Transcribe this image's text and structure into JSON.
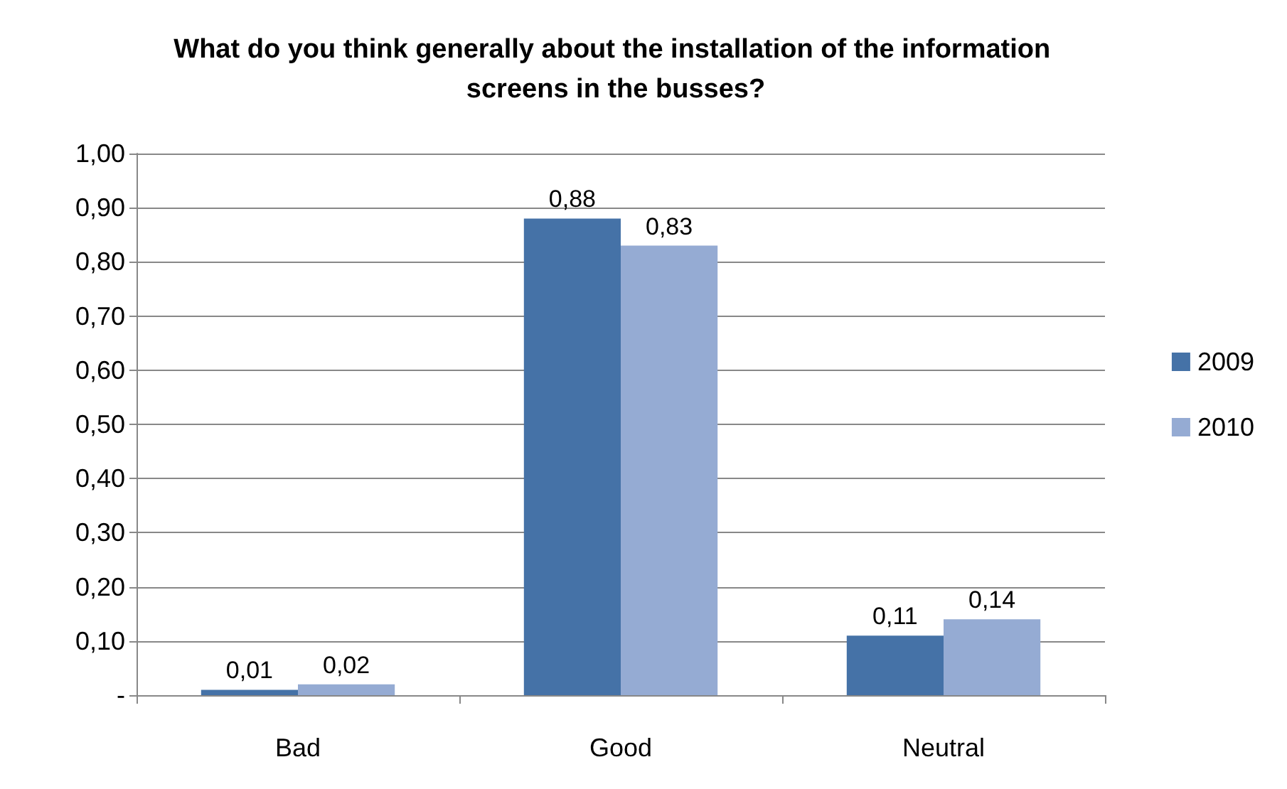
{
  "chart_data": {
    "type": "bar",
    "title": "What do you think generally about the installation of the information screens in the busses?",
    "categories": [
      "Bad",
      "Good",
      "Neutral"
    ],
    "series": [
      {
        "name": "2009",
        "color": "#4572a7",
        "values": [
          0.01,
          0.88,
          0.11
        ],
        "value_labels": [
          "0,01",
          "0,88",
          "0,11"
        ]
      },
      {
        "name": "2010",
        "color": "#95abd3",
        "values": [
          0.02,
          0.83,
          0.14
        ],
        "value_labels": [
          "0,02",
          "0,83",
          "0,14"
        ]
      }
    ],
    "ylim": [
      0,
      1
    ],
    "yticks": [
      {
        "value": 0,
        "label": "-"
      },
      {
        "value": 0.1,
        "label": "0,10"
      },
      {
        "value": 0.2,
        "label": "0,20"
      },
      {
        "value": 0.3,
        "label": "0,30"
      },
      {
        "value": 0.4,
        "label": "0,40"
      },
      {
        "value": 0.5,
        "label": "0,50"
      },
      {
        "value": 0.6,
        "label": "0,60"
      },
      {
        "value": 0.7,
        "label": "0,70"
      },
      {
        "value": 0.8,
        "label": "0,80"
      },
      {
        "value": 0.9,
        "label": "0,90"
      },
      {
        "value": 1,
        "label": "1,00"
      }
    ],
    "grid": true,
    "legend": "right"
  }
}
